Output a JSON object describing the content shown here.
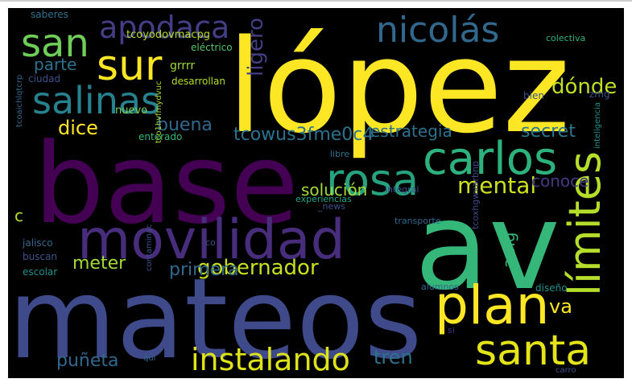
{
  "palette": {
    "background": "#000000",
    "yellow": "#fde725",
    "green": "#5ec962",
    "teal": "#21918c",
    "blue": "#3b528b",
    "purple": "#440154",
    "violet": "#472d7b"
  },
  "words": [
    {
      "text": "lópez",
      "color": "#fde725"
    },
    {
      "text": "base",
      "color": "#440154"
    },
    {
      "text": "av",
      "color": "#35b779"
    },
    {
      "text": "mateos",
      "color": "#3e4a89"
    },
    {
      "text": "movilidad",
      "color": "#472d7b"
    },
    {
      "text": "nicolás",
      "color": "#31688e"
    },
    {
      "text": "san",
      "color": "#6ece58"
    },
    {
      "text": "sur",
      "color": "#fde725"
    },
    {
      "text": "apodaca",
      "color": "#433e85"
    },
    {
      "text": "salinas",
      "color": "#26828e"
    },
    {
      "text": "carlos",
      "color": "#2db27d"
    },
    {
      "text": "rosa",
      "color": "#26a37e"
    },
    {
      "text": "plan",
      "color": "#fde725"
    },
    {
      "text": "santa",
      "color": "#e5e419"
    },
    {
      "text": "límites",
      "color": "#b5de2b"
    },
    {
      "text": "instalando",
      "color": "#dde318"
    },
    {
      "text": "gobernador",
      "color": "#c8e020"
    },
    {
      "text": "ligero",
      "color": "#433e85"
    },
    {
      "text": "mental",
      "color": "#cde11d"
    },
    {
      "text": "dice",
      "color": "#fde725"
    },
    {
      "text": "buena",
      "color": "#31688e"
    },
    {
      "text": "tcowus3fme0c4",
      "color": "#2c728e"
    },
    {
      "text": "estrategia",
      "color": "#2c728e"
    },
    {
      "text": "secret",
      "color": "#2a788e"
    },
    {
      "text": "dónde",
      "color": "#c2df23"
    },
    {
      "text": "parte",
      "color": "#2c728e"
    },
    {
      "text": "solución",
      "color": "#a5db36"
    },
    {
      "text": "conoce",
      "color": "#443983"
    },
    {
      "text": "meter",
      "color": "#a0da39"
    },
    {
      "text": "primera",
      "color": "#31688e"
    },
    {
      "text": "amg",
      "color": "#35b779"
    },
    {
      "text": "va",
      "color": "#fde725"
    },
    {
      "text": "puñeta",
      "color": "#31688e"
    },
    {
      "text": "tren",
      "color": "#2c728e"
    },
    {
      "text": "c",
      "color": "#b5de2b"
    },
    {
      "text": "tcoyodovmacpg",
      "color": "#b5de2b"
    },
    {
      "text": "saberes",
      "color": "#2c728e"
    },
    {
      "text": "eléctrico",
      "color": "#52c569"
    },
    {
      "text": "grrrr",
      "color": "#9fda3a"
    },
    {
      "text": "desarrollan",
      "color": "#b5de2b"
    },
    {
      "text": "ciudad",
      "color": "#3b528b"
    },
    {
      "text": "colectiva",
      "color": "#2db27d"
    },
    {
      "text": "nuevo",
      "color": "#7ad151"
    },
    {
      "text": "enterado",
      "color": "#35b779"
    },
    {
      "text": "tcoaichlqtcrp",
      "color": "#31688e"
    },
    {
      "text": "tco1hvfmydvuc",
      "color": "#a8db34"
    },
    {
      "text": "bien",
      "color": "#3b528b"
    },
    {
      "text": "zmg",
      "color": "#3b528b"
    },
    {
      "text": "libre",
      "color": "#2c728e"
    },
    {
      "text": "inteligencia",
      "color": "#21918c"
    },
    {
      "text": "integral",
      "color": "#3b528b"
    },
    {
      "text": "experiencias",
      "color": "#21a685"
    },
    {
      "text": "_news",
      "color": "#3b528b"
    },
    {
      "text": "tcoxhgwvarbnp",
      "color": "#3e4a89"
    },
    {
      "text": "transporte",
      "color": "#31688e"
    },
    {
      "text": "co",
      "color": "#3b528b"
    },
    {
      "text": "jalisco",
      "color": "#31688e"
    },
    {
      "text": "buscan",
      "color": "#3b528b"
    },
    {
      "text": "escolar",
      "color": "#21918c"
    },
    {
      "text": "contaminac",
      "color": "#3b528b"
    },
    {
      "text": "alumnos",
      "color": "#31688e"
    },
    {
      "text": "diseño",
      "color": "#21918c"
    },
    {
      "text": "si",
      "color": "#46327e"
    },
    {
      "text": "qui",
      "color": "#31688e"
    },
    {
      "text": "carro",
      "color": "#3b528b"
    }
  ]
}
